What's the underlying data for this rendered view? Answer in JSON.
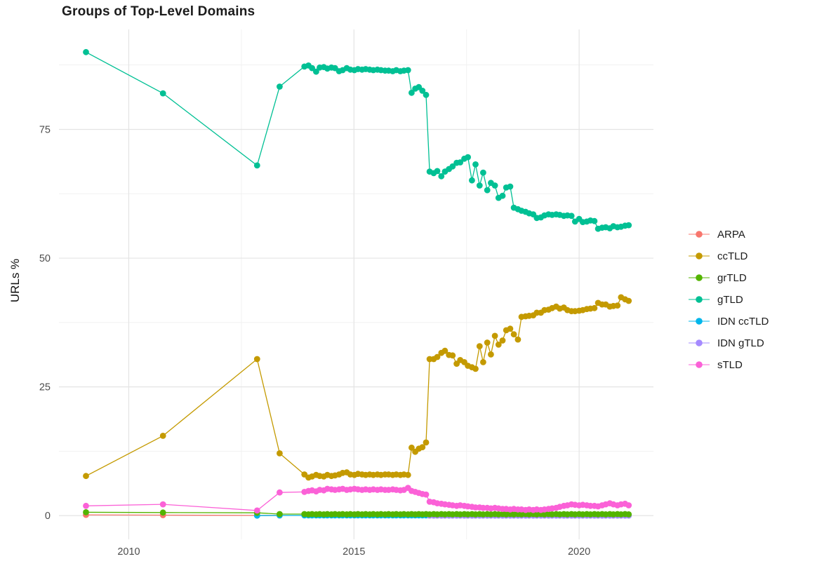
{
  "chart": {
    "title": "Groups of Top-Level Domains",
    "y_axis_label": "URLs %"
  },
  "legend": {
    "items": [
      {
        "label": "ARPA",
        "color": "#F8766D"
      },
      {
        "label": "ccTLD",
        "color": "#C49A00"
      },
      {
        "label": "grTLD",
        "color": "#53B400"
      },
      {
        "label": "gTLD",
        "color": "#00C094"
      },
      {
        "label": "IDN ccTLD",
        "color": "#00B6EB"
      },
      {
        "label": "IDN gTLD",
        "color": "#A58AFF"
      },
      {
        "label": "sTLD",
        "color": "#FB61D7"
      }
    ]
  },
  "colors": {
    "tick_label": "#4d4d4d",
    "grid_major": "#e4e4e4",
    "grid_minor": "#f1f1f1",
    "background": "#ffffff"
  },
  "chart_data": {
    "type": "line",
    "title": "Groups of Top-Level Domains",
    "xlabel": "",
    "ylabel": "URLs %",
    "grid": true,
    "legend_position": "right",
    "x_ticks": [
      2010,
      2015,
      2020
    ],
    "y_ticks": [
      0,
      25,
      50,
      75
    ],
    "x_minor_gridlines": [
      2012.5,
      2017.5
    ],
    "y_minor_gridlines": [
      12.5,
      37.5,
      62.5,
      87.5
    ],
    "x_domain": [
      2008.45,
      2021.65
    ],
    "y_domain": [
      -4.6,
      94.4
    ],
    "x_all": [
      2009.05,
      2010.76,
      2012.85,
      2013.35,
      2013.9,
      2013.99,
      2014.07,
      2014.16,
      2014.24,
      2014.33,
      2014.41,
      2014.5,
      2014.58,
      2014.67,
      2014.75,
      2014.84,
      2014.92,
      2015.01,
      2015.09,
      2015.18,
      2015.26,
      2015.35,
      2015.43,
      2015.52,
      2015.6,
      2015.69,
      2015.77,
      2015.86,
      2015.94,
      2016.03,
      2016.11,
      2016.2,
      2016.28,
      2016.36,
      2016.44,
      2016.52,
      2016.6,
      2016.68,
      2016.77,
      2016.85,
      2016.94,
      2017.02,
      2017.11,
      2017.19,
      2017.28,
      2017.36,
      2017.45,
      2017.53,
      2017.62,
      2017.7,
      2017.79,
      2017.87,
      2017.96,
      2018.04,
      2018.13,
      2018.21,
      2018.3,
      2018.38,
      2018.47,
      2018.55,
      2018.64,
      2018.72,
      2018.81,
      2018.89,
      2018.98,
      2019.06,
      2019.15,
      2019.23,
      2019.32,
      2019.4,
      2019.49,
      2019.57,
      2019.66,
      2019.74,
      2019.83,
      2019.91,
      2020.0,
      2020.08,
      2020.17,
      2020.25,
      2020.34,
      2020.42,
      2020.51,
      2020.59,
      2020.68,
      2020.76,
      2020.85,
      2020.93,
      2021.02,
      2021.1
    ],
    "series": [
      {
        "name": "ARPA",
        "color": "#F8766D",
        "z": 1,
        "x_start_index": 0,
        "values": [
          0.15,
          0.1,
          0.05,
          0.03
        ]
      },
      {
        "name": "ccTLD",
        "color": "#C49A00",
        "z": 4,
        "x_start_index": 0,
        "values": [
          7.7,
          15.5,
          30.4,
          12.1,
          8,
          7.4,
          7.6,
          7.9,
          7.7,
          7.6,
          7.9,
          7.7,
          7.8,
          8,
          8.3,
          8.4,
          8,
          7.9,
          8.1,
          8,
          7.9,
          8,
          7.9,
          8,
          7.9,
          8,
          8,
          7.9,
          8,
          7.9,
          8,
          7.9,
          13.2,
          12.4,
          13,
          13.3,
          14.2,
          30.4,
          30.4,
          30.8,
          31.6,
          32,
          31.2,
          31.1,
          29.5,
          30.2,
          29.8,
          29.1,
          28.8,
          28.5,
          32.9,
          29.8,
          33.6,
          31.3,
          34.9,
          33.2,
          34,
          36,
          36.3,
          35.2,
          34.2,
          38.6,
          38.7,
          38.8,
          38.9,
          39.4,
          39.4,
          39.9,
          40,
          40.3,
          40.6,
          40.2,
          40.4,
          39.9,
          39.7,
          39.7,
          39.8,
          39.9,
          40.1,
          40.2,
          40.3,
          41.3,
          41,
          41,
          40.6,
          40.7,
          40.8,
          42.4,
          42,
          41.7
        ]
      },
      {
        "name": "grTLD",
        "color": "#53B400",
        "z": 5,
        "x_start_index": 0,
        "values": [
          0.65,
          0.6,
          0.55,
          0.3,
          0.3,
          0.25,
          0.3,
          0.25,
          0.3,
          0.25,
          0.3,
          0.25,
          0.3,
          0.25,
          0.3,
          0.25,
          0.3,
          0.25,
          0.3,
          0.25,
          0.3,
          0.25,
          0.3,
          0.25,
          0.3,
          0.25,
          0.3,
          0.25,
          0.3,
          0.25,
          0.3,
          0.25,
          0.3,
          0.25,
          0.3,
          0.25,
          0.3,
          0.25,
          0.3,
          0.25,
          0.3,
          0.25,
          0.3,
          0.25,
          0.3,
          0.25,
          0.3,
          0.25,
          0.3,
          0.25,
          0.3,
          0.25,
          0.3,
          0.25,
          0.3,
          0.25,
          0.3,
          0.25,
          0.3,
          0.25,
          0.3,
          0.25,
          0.3,
          0.25,
          0.3,
          0.25,
          0.3,
          0.25,
          0.3,
          0.25,
          0.3,
          0.25,
          0.3,
          0.25,
          0.3,
          0.25,
          0.3,
          0.25,
          0.3,
          0.25,
          0.3,
          0.25,
          0.3,
          0.25,
          0.3,
          0.25,
          0.3,
          0.25,
          0.3,
          0.25
        ]
      },
      {
        "name": "gTLD",
        "color": "#00C094",
        "z": 6,
        "x_start_index": 0,
        "values": [
          90,
          82,
          68,
          83.3,
          87.2,
          87.4,
          86.9,
          86.2,
          87,
          87.1,
          86.8,
          87,
          86.9,
          86.3,
          86.5,
          86.9,
          86.6,
          86.5,
          86.7,
          86.6,
          86.7,
          86.6,
          86.5,
          86.6,
          86.5,
          86.4,
          86.4,
          86.3,
          86.5,
          86.3,
          86.4,
          86.5,
          82.1,
          82.9,
          83.2,
          82.5,
          81.7,
          66.8,
          66.5,
          66.9,
          65.9,
          66.8,
          67.3,
          67.8,
          68.5,
          68.6,
          69.3,
          69.6,
          65.1,
          68.2,
          64.1,
          66.6,
          63.2,
          64.6,
          64.1,
          61.7,
          62.1,
          63.7,
          63.9,
          59.8,
          59.5,
          59.2,
          59,
          58.7,
          58.5,
          57.8,
          57.9,
          58.3,
          58.5,
          58.4,
          58.5,
          58.4,
          58.2,
          58.3,
          58.2,
          57.1,
          57.6,
          57,
          57.1,
          57.3,
          57.2,
          55.7,
          55.9,
          56,
          55.8,
          56.2,
          56,
          56.1,
          56.3,
          56.4
        ]
      },
      {
        "name": "IDN ccTLD",
        "color": "#00B6EB",
        "z": 2,
        "x_start_index": 2,
        "values": [
          0,
          0.05,
          0.05,
          0.05,
          0.05,
          0.05,
          0.05,
          0.05,
          0.05,
          0.05,
          0.05,
          0.05,
          0.05,
          0.05,
          0.05,
          0.05,
          0.05,
          0.05,
          0.05,
          0.05,
          0.05,
          0.05,
          0.05,
          0.05,
          0.05,
          0.05,
          0.05,
          0.05,
          0.05,
          0.05,
          0.05,
          0.05,
          0.05,
          0.05,
          0.05,
          0.05,
          0.05,
          0.05,
          0.05,
          0.05,
          0.05,
          0.05,
          0.05,
          0.05,
          0.05,
          0.05,
          0.05,
          0.05,
          0.05,
          0.05,
          0.05,
          0.05,
          0.05,
          0.05,
          0.05,
          0.05,
          0.05,
          0.05,
          0.05,
          0.05,
          0.05,
          0.05,
          0.05,
          0.05,
          0.05,
          0.05,
          0.05,
          0.05,
          0.05,
          0.05,
          0.05,
          0.05,
          0.05,
          0.05,
          0.05,
          0.05,
          0.05,
          0.05,
          0.05,
          0.05,
          0.05,
          0.05,
          0.05,
          0.05,
          0.05,
          0.05,
          0.05,
          0.05
        ]
      },
      {
        "name": "IDN gTLD",
        "color": "#A58AFF",
        "z": 3,
        "x_start_index": 37,
        "values": [
          0.02,
          0.02,
          0.02,
          0.02,
          0.02,
          0.02,
          0.02,
          0.02,
          0.02,
          0.02,
          0.02,
          0.02,
          0.02,
          0.02,
          0.02,
          0.02,
          0.02,
          0.02,
          0.02,
          0.02,
          0.02,
          0.02,
          0.02,
          0.02,
          0.02,
          0.02,
          0.02,
          0.02,
          0.02,
          0.02,
          0.02,
          0.02,
          0.02,
          0.02,
          0.02,
          0.02,
          0.02,
          0.02,
          0.02,
          0.02,
          0.02,
          0.02,
          0.02,
          0.02,
          0.02,
          0.02,
          0.02,
          0.02,
          0.02,
          0.02,
          0.02,
          0.02,
          0.02
        ]
      },
      {
        "name": "sTLD",
        "color": "#FB61D7",
        "z": 7,
        "x_start_index": 0,
        "values": [
          1.9,
          2.2,
          1,
          4.5,
          4.6,
          4.8,
          4.9,
          4.7,
          5,
          4.9,
          5.2,
          5.1,
          5,
          5.1,
          5.2,
          5,
          5.1,
          5.2,
          5.1,
          5,
          5.1,
          5,
          5.1,
          5,
          5.1,
          5,
          5,
          5.1,
          5,
          4.9,
          5,
          5.4,
          4.8,
          4.6,
          4.4,
          4.2,
          4.1,
          2.7,
          2.6,
          2.4,
          2.3,
          2.2,
          2.1,
          2,
          1.9,
          2,
          1.9,
          1.8,
          1.7,
          1.6,
          1.6,
          1.5,
          1.5,
          1.4,
          1.5,
          1.4,
          1.3,
          1.3,
          1.2,
          1.3,
          1.2,
          1.2,
          1.1,
          1.2,
          1.1,
          1.2,
          1.1,
          1.2,
          1.3,
          1.4,
          1.5,
          1.7,
          1.9,
          2,
          2.2,
          2.1,
          2,
          2.1,
          2,
          1.9,
          1.9,
          1.8,
          2,
          2.2,
          2.4,
          2.2,
          2,
          2.2,
          2.3,
          2
        ]
      }
    ]
  }
}
